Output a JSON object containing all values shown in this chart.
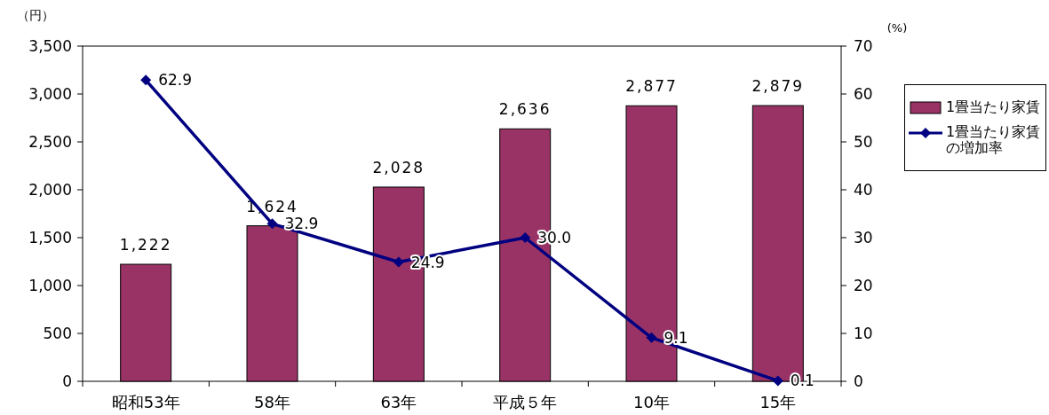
{
  "chart_data": {
    "type": "bar",
    "categories": [
      "昭和53年",
      "58年",
      "63年",
      "平成５年",
      "10年",
      "15年"
    ],
    "ylabel": "（円）",
    "y2label": "(%)",
    "series": [
      {
        "name": "1畳当たり家賃",
        "color": "#993366",
        "values": [
          1222,
          1624,
          2028,
          2636,
          2877,
          2879
        ],
        "value_labels": [
          "1,222",
          "1,624",
          "2,028",
          "2,636",
          "2,877",
          "2,879"
        ]
      },
      {
        "name": "1畳当たり家賃の増加率",
        "type": "line",
        "axis": "y2",
        "color": "#000080",
        "marker": "diamond",
        "values": [
          62.9,
          32.9,
          24.9,
          30.0,
          9.1,
          0.1
        ],
        "value_labels": [
          "62.9",
          "32.9",
          "24.9",
          "30.0",
          "9.1",
          "0.1"
        ]
      }
    ],
    "ylim": [
      0,
      3500
    ],
    "yticks": [
      0,
      {
        "value": 500,
        "label": "500"
      },
      {
        "value": 1000,
        "label": "1,000"
      },
      {
        "value": 1500,
        "label": "1,500"
      },
      {
        "value": 2000,
        "label": "2,000"
      },
      {
        "value": 2500,
        "label": "2,500"
      },
      {
        "value": 3000,
        "label": "3,000"
      },
      {
        "value": 3500,
        "label": "3,500"
      }
    ],
    "y2lim": [
      0,
      70
    ],
    "y2ticks": [
      0,
      10,
      20,
      30,
      40,
      50,
      60,
      70
    ],
    "legend": "right",
    "grid": false
  }
}
